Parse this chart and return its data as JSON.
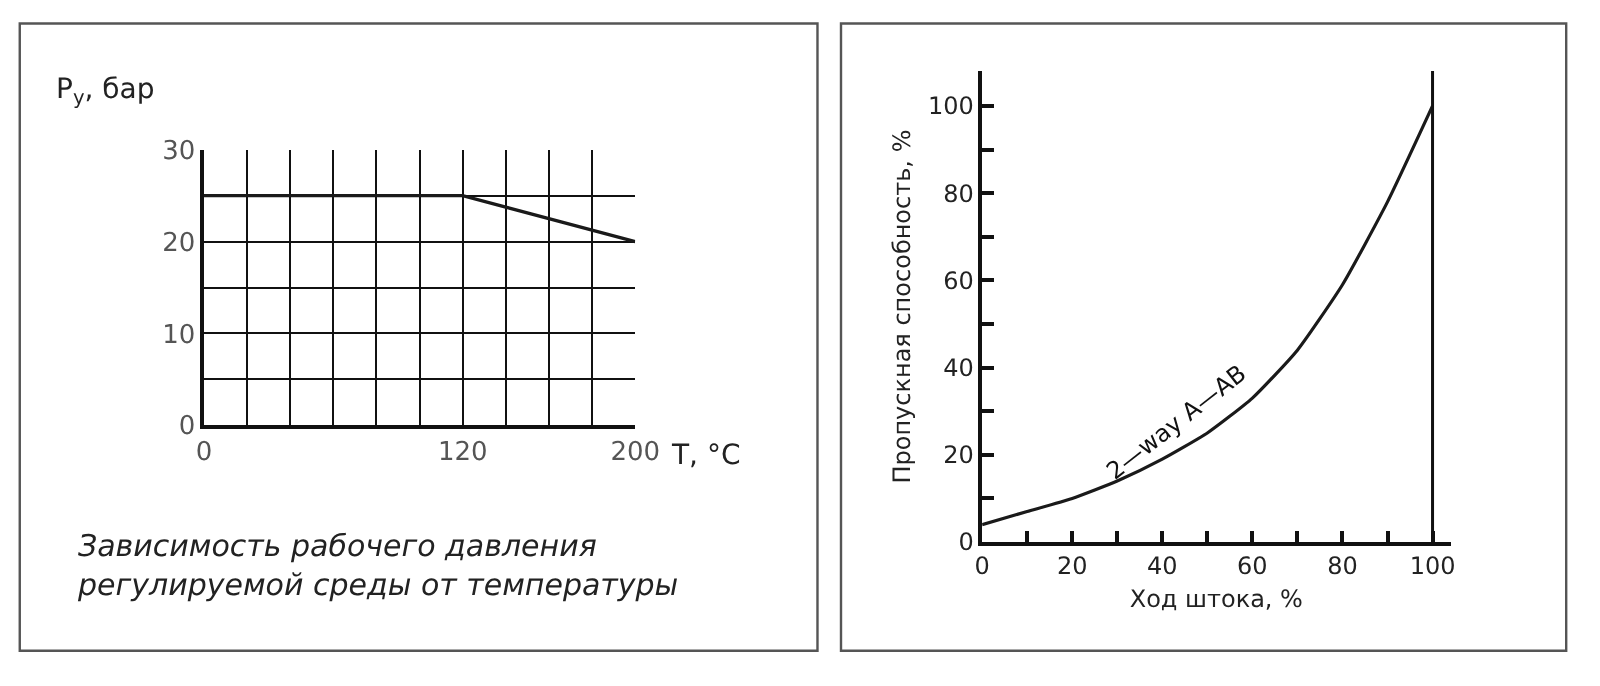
{
  "chart_data": [
    {
      "type": "line",
      "ylabel": "P$_{у}$, бар",
      "xlabel": "T, °C",
      "x": [
        0,
        120,
        200
      ],
      "series": [
        {
          "color": "#1a1a1a",
          "values": [
            25,
            25,
            20
          ]
        }
      ],
      "xlim": [
        0,
        200
      ],
      "ylim": [
        0,
        30
      ],
      "xticks": [
        0,
        {
          "value": 20,
          "label": null
        },
        {
          "value": 40,
          "label": null
        },
        {
          "value": 60,
          "label": null
        },
        {
          "value": 80,
          "label": null
        },
        {
          "value": 100,
          "label": null
        },
        120,
        {
          "value": 140,
          "label": null
        },
        {
          "value": 160,
          "label": null
        },
        {
          "value": 180,
          "label": null
        },
        200
      ],
      "yticks": [
        0,
        {
          "value": 5,
          "label": null
        },
        10,
        {
          "value": 15,
          "label": null
        },
        20,
        {
          "value": 25,
          "label": null
        },
        30
      ],
      "grid": true,
      "marker": "none",
      "line_style": "solid",
      "annotations": [
        "Зависимость рабочего давления\nрегулируемой среды от температуры"
      ]
    },
    {
      "type": "line",
      "ylabel": "Пропускная способность, %",
      "xlabel": "Ход штока, %",
      "x": [
        0,
        10,
        20,
        30,
        40,
        50,
        60,
        70,
        80,
        90,
        100
      ],
      "series": [
        {
          "color": "#1a1a1a",
          "values": [
            4,
            7,
            10,
            14,
            19,
            25,
            33,
            44,
            59,
            78,
            100
          ]
        }
      ],
      "xlim": [
        0,
        104
      ],
      "ylim": [
        0,
        108
      ],
      "xticks": [
        0,
        {
          "value": 10,
          "label": null
        },
        20,
        {
          "value": 30,
          "label": null
        },
        40,
        {
          "value": 50,
          "label": null
        },
        60,
        {
          "value": 70,
          "label": null
        },
        80,
        {
          "value": 90,
          "label": null
        },
        100
      ],
      "yticks": [
        0,
        {
          "value": 10,
          "label": null
        },
        20,
        {
          "value": 30,
          "label": null
        },
        40,
        {
          "value": 50,
          "label": null
        },
        60,
        {
          "value": 70,
          "label": null
        },
        80,
        {
          "value": 90,
          "label": null
        },
        100
      ],
      "grid": false,
      "marker": "none",
      "line_style": "solid",
      "ref_lines": [
        {
          "axis": "x",
          "value": 100,
          "label": null
        }
      ],
      "annotations": [
        {
          "text": "2—way A—AB",
          "x": 45,
          "y": 22
        }
      ]
    }
  ]
}
